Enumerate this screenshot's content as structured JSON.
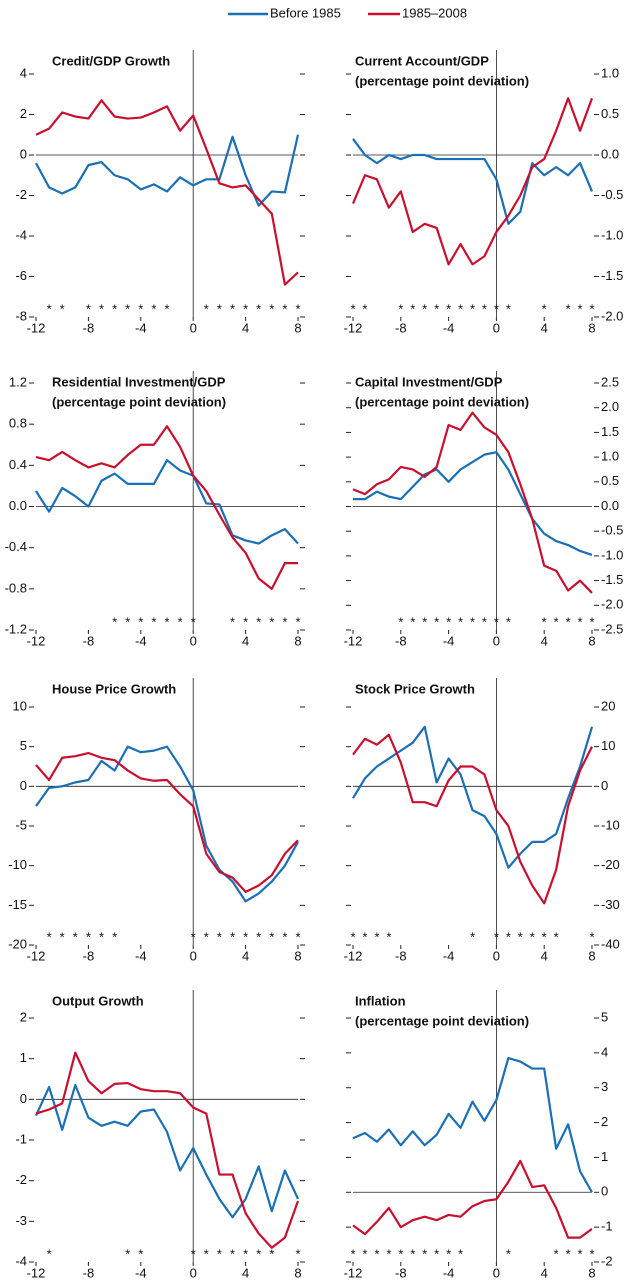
{
  "legend": [
    {
      "name": "Before 1985",
      "color": "#1a6fb5"
    },
    {
      "name": "1985–2008",
      "color": "#c8102e"
    }
  ],
  "chart_data": [
    {
      "type": "line",
      "title": "Credit/GDP Growth",
      "star_label": "*",
      "x": [
        -12,
        -11,
        -10,
        -9,
        -8,
        -7,
        -6,
        -5,
        -4,
        -3,
        -2,
        -1,
        0,
        1,
        2,
        3,
        4,
        5,
        6,
        7,
        8
      ],
      "xlim": [
        -12,
        8
      ],
      "xticks": [
        -12,
        -8,
        -4,
        0,
        4,
        8
      ],
      "ylim": [
        -8,
        4
      ],
      "yticks": [
        4,
        2,
        0,
        -2,
        -4,
        -6,
        -8
      ],
      "ytick_side": "left",
      "series": [
        {
          "color": "#1a6fb5",
          "values": [
            -0.4,
            -1.6,
            -1.9,
            -1.6,
            -0.5,
            -0.35,
            -1.0,
            -1.2,
            -1.7,
            -1.45,
            -1.8,
            -1.1,
            -1.5,
            -1.2,
            -1.2,
            0.9,
            -1.0,
            -2.5,
            -1.8,
            -1.85,
            1.0
          ]
        },
        {
          "color": "#c8102e",
          "values": [
            1.0,
            1.3,
            2.1,
            1.9,
            1.8,
            2.7,
            1.9,
            1.8,
            1.85,
            2.1,
            2.4,
            1.2,
            1.95,
            0.3,
            -1.4,
            -1.6,
            -1.5,
            -2.2,
            -2.9,
            -6.4,
            -5.8
          ]
        }
      ],
      "stars": [
        -11,
        -10,
        -8,
        -7,
        -6,
        -5,
        -4,
        -3,
        -2,
        1,
        2,
        3,
        4,
        5,
        6,
        7,
        8
      ]
    },
    {
      "type": "line",
      "title": "Current Account/GDP",
      "subtitle": "(percentage point deviation)",
      "star_label": "*",
      "x": [
        -12,
        -11,
        -10,
        -9,
        -8,
        -7,
        -6,
        -5,
        -4,
        -3,
        -2,
        -1,
        0,
        1,
        2,
        3,
        4,
        5,
        6,
        7,
        8
      ],
      "xlim": [
        -12,
        8
      ],
      "xticks": [
        -12,
        -8,
        -4,
        0,
        4,
        8
      ],
      "ylim": [
        -2,
        1
      ],
      "yticks": [
        {
          "value": 1,
          "label": "1.0"
        },
        0.5,
        {
          "value": 0,
          "label": "0.0"
        },
        -0.5,
        {
          "value": -1,
          "label": "-1.0"
        },
        -1.5,
        {
          "value": -2,
          "label": "-2.0"
        }
      ],
      "ytick_side": "right",
      "series": [
        {
          "color": "#1a6fb5",
          "values": [
            0.2,
            0.0,
            -0.1,
            0.0,
            -0.05,
            0.0,
            0.0,
            -0.05,
            -0.05,
            -0.05,
            -0.05,
            -0.05,
            -0.3,
            -0.85,
            -0.7,
            -0.1,
            -0.25,
            -0.15,
            -0.25,
            -0.1,
            -0.45
          ]
        },
        {
          "color": "#c8102e",
          "values": [
            -0.6,
            -0.25,
            -0.3,
            -0.65,
            -0.45,
            -0.95,
            -0.85,
            -0.9,
            -1.35,
            -1.1,
            -1.35,
            -1.25,
            -0.95,
            -0.75,
            -0.5,
            -0.15,
            -0.05,
            0.3,
            0.7,
            0.3,
            0.7
          ]
        }
      ],
      "stars": [
        -12,
        -11,
        -8,
        -7,
        -6,
        -5,
        -4,
        -3,
        -2,
        -1,
        0,
        1,
        4,
        6,
        7,
        8
      ]
    },
    {
      "type": "line",
      "title": "Residential Investment/GDP",
      "subtitle": "(percentage point deviation)",
      "star_label": "*",
      "x": [
        -12,
        -11,
        -10,
        -9,
        -8,
        -7,
        -6,
        -5,
        -4,
        -3,
        -2,
        -1,
        0,
        1,
        2,
        3,
        4,
        5,
        6,
        7,
        8
      ],
      "xlim": [
        -12,
        8
      ],
      "xticks": [
        -12,
        -8,
        -4,
        0,
        4,
        8
      ],
      "ylim": [
        -1.2,
        1.2
      ],
      "yticks": [
        1.2,
        0.8,
        0.4,
        {
          "value": 0,
          "label": "0.0"
        },
        -0.4,
        -0.8,
        -1.2
      ],
      "ytick_side": "left",
      "series": [
        {
          "color": "#1a6fb5",
          "values": [
            0.15,
            -0.05,
            0.18,
            0.1,
            0.0,
            0.25,
            0.32,
            0.22,
            0.22,
            0.22,
            0.45,
            0.35,
            0.3,
            0.03,
            0.02,
            -0.28,
            -0.33,
            -0.36,
            -0.28,
            -0.22,
            -0.36
          ]
        },
        {
          "color": "#c8102e",
          "values": [
            0.48,
            0.45,
            0.53,
            0.45,
            0.38,
            0.42,
            0.38,
            0.5,
            0.6,
            0.6,
            0.78,
            0.58,
            0.3,
            0.15,
            -0.08,
            -0.3,
            -0.45,
            -0.7,
            -0.8,
            -0.55,
            -0.55
          ]
        }
      ],
      "stars": [
        -6,
        -5,
        -4,
        -3,
        -2,
        -1,
        0,
        3,
        4,
        5,
        6,
        7,
        8
      ]
    },
    {
      "type": "line",
      "title": "Capital Investment/GDP",
      "subtitle": "(percentage point deviation)",
      "star_label": "*",
      "x": [
        -12,
        -11,
        -10,
        -9,
        -8,
        -7,
        -6,
        -5,
        -4,
        -3,
        -2,
        -1,
        0,
        1,
        2,
        3,
        4,
        5,
        6,
        7,
        8
      ],
      "xlim": [
        -12,
        8
      ],
      "xticks": [
        -12,
        -8,
        -4,
        0,
        4,
        8
      ],
      "ylim": [
        -2.5,
        2.5
      ],
      "yticks": [
        2.5,
        {
          "value": 2,
          "label": "2.0"
        },
        1.5,
        {
          "value": 1,
          "label": "1.0"
        },
        0.5,
        {
          "value": 0,
          "label": "0.0"
        },
        -0.5,
        {
          "value": -1,
          "label": "-1.0"
        },
        -1.5,
        {
          "value": -2,
          "label": "-2.0"
        },
        -2.5
      ],
      "ytick_side": "right",
      "series": [
        {
          "color": "#1a6fb5",
          "values": [
            0.15,
            0.15,
            0.3,
            0.2,
            0.15,
            0.4,
            0.65,
            0.75,
            0.5,
            0.75,
            0.9,
            1.05,
            1.1,
            0.75,
            0.25,
            -0.25,
            -0.55,
            -0.7,
            -0.78,
            -0.9,
            -0.98
          ]
        },
        {
          "color": "#c8102e",
          "values": [
            0.35,
            0.25,
            0.45,
            0.55,
            0.8,
            0.75,
            0.6,
            0.8,
            1.65,
            1.55,
            1.9,
            1.6,
            1.45,
            1.1,
            0.45,
            -0.25,
            -1.2,
            -1.3,
            -1.7,
            -1.5,
            -1.75
          ]
        }
      ],
      "stars": [
        -8,
        -7,
        -6,
        -5,
        -4,
        -3,
        -2,
        -1,
        0,
        1,
        4,
        5,
        6,
        7,
        8
      ]
    },
    {
      "type": "line",
      "title": "House Price Growth",
      "star_label": "*",
      "x": [
        -12,
        -11,
        -10,
        -9,
        -8,
        -7,
        -6,
        -5,
        -4,
        -3,
        -2,
        -1,
        0,
        1,
        2,
        3,
        4,
        5,
        6,
        7,
        8
      ],
      "xlim": [
        -12,
        8
      ],
      "xticks": [
        -12,
        -8,
        -4,
        0,
        4,
        8
      ],
      "ylim": [
        -20,
        10
      ],
      "yticks": [
        10,
        5,
        0,
        -5,
        -10,
        -15,
        -20
      ],
      "ytick_side": "left",
      "series": [
        {
          "color": "#1a6fb5",
          "values": [
            -2.5,
            -0.2,
            0.0,
            0.5,
            0.8,
            3.2,
            2.0,
            5.0,
            4.3,
            4.5,
            5.0,
            2.5,
            -0.5,
            -7.5,
            -10.5,
            -12,
            -14.5,
            -13.5,
            -12,
            -10,
            -7
          ]
        },
        {
          "color": "#c8102e",
          "values": [
            2.7,
            0.8,
            3.6,
            3.8,
            4.2,
            3.6,
            3.3,
            2.0,
            1.0,
            0.7,
            0.8,
            -1.0,
            -2.5,
            -8.5,
            -10.8,
            -11.5,
            -13.3,
            -12.5,
            -11.2,
            -8.5,
            -6.8
          ]
        }
      ],
      "stars": [
        -11,
        -10,
        -9,
        -8,
        -7,
        -6,
        0,
        1,
        2,
        3,
        4,
        5,
        6,
        7,
        8
      ]
    },
    {
      "type": "line",
      "title": "Stock Price Growth",
      "star_label": "*",
      "x": [
        -12,
        -11,
        -10,
        -9,
        -8,
        -7,
        -6,
        -5,
        -4,
        -3,
        -2,
        -1,
        0,
        1,
        2,
        3,
        4,
        5,
        6,
        7,
        8
      ],
      "xlim": [
        -12,
        8
      ],
      "xticks": [
        -12,
        -8,
        -4,
        0,
        4,
        8
      ],
      "ylim": [
        -40,
        20
      ],
      "yticks": [
        20,
        10,
        0,
        -10,
        -20,
        -30,
        -40
      ],
      "ytick_side": "right",
      "series": [
        {
          "color": "#1a6fb5",
          "values": [
            -3,
            2,
            5,
            7,
            9,
            11,
            15,
            1,
            7,
            3,
            -6,
            -7.5,
            -12,
            -20.5,
            -17,
            -14,
            -14,
            -12,
            -3,
            5,
            15
          ]
        },
        {
          "color": "#c8102e",
          "values": [
            8,
            12,
            10.5,
            13,
            6,
            -4,
            -4,
            -5,
            1.5,
            5,
            5,
            3,
            -6,
            -10,
            -19,
            -25,
            -29.5,
            -21,
            -5,
            4,
            10
          ]
        }
      ],
      "stars": [
        -12,
        -11,
        -10,
        -9,
        -2,
        0,
        1,
        2,
        3,
        4,
        5,
        8
      ]
    },
    {
      "type": "line",
      "title": "Output Growth",
      "star_label": "*",
      "x": [
        -12,
        -11,
        -10,
        -9,
        -8,
        -7,
        -6,
        -5,
        -4,
        -3,
        -2,
        -1,
        0,
        1,
        2,
        3,
        4,
        5,
        6,
        7,
        8
      ],
      "xlim": [
        -12,
        8
      ],
      "xticks": [
        -12,
        -8,
        -4,
        0,
        4,
        8
      ],
      "ylim": [
        -4,
        2
      ],
      "yticks": [
        2,
        1,
        0,
        -1,
        -2,
        -3,
        -4
      ],
      "ytick_side": "left",
      "series": [
        {
          "color": "#1a6fb5",
          "values": [
            -0.4,
            0.3,
            -0.75,
            0.35,
            -0.45,
            -0.65,
            -0.55,
            -0.65,
            -0.3,
            -0.25,
            -0.8,
            -1.75,
            -1.2,
            -1.85,
            -2.45,
            -2.9,
            -2.45,
            -1.65,
            -2.75,
            -1.75,
            -2.45
          ]
        },
        {
          "color": "#c8102e",
          "values": [
            -0.35,
            -0.25,
            -0.1,
            1.15,
            0.45,
            0.15,
            0.38,
            0.4,
            0.25,
            0.2,
            0.2,
            0.15,
            -0.2,
            -0.35,
            -1.85,
            -1.85,
            -2.8,
            -3.3,
            -3.65,
            -3.4,
            -2.5
          ]
        }
      ],
      "stars": [
        -11,
        -5,
        -4,
        0,
        1,
        2,
        3,
        4,
        5,
        6,
        8
      ]
    },
    {
      "type": "line",
      "title": "Inflation",
      "subtitle": "(percentage point deviation)",
      "star_label": "*",
      "x": [
        -12,
        -11,
        -10,
        -9,
        -8,
        -7,
        -6,
        -5,
        -4,
        -3,
        -2,
        -1,
        0,
        1,
        2,
        3,
        4,
        5,
        6,
        7,
        8
      ],
      "xlim": [
        -12,
        8
      ],
      "xticks": [
        -12,
        -8,
        -4,
        0,
        4,
        8
      ],
      "ylim": [
        -2,
        5
      ],
      "yticks": [
        5,
        4,
        3,
        2,
        1,
        0,
        -1,
        -2
      ],
      "ytick_side": "right",
      "series": [
        {
          "color": "#1a6fb5",
          "values": [
            1.55,
            1.7,
            1.45,
            1.8,
            1.35,
            1.75,
            1.35,
            1.65,
            2.25,
            1.85,
            2.6,
            2.05,
            2.65,
            3.85,
            3.75,
            3.55,
            3.55,
            1.25,
            1.95,
            0.6,
            0.0
          ]
        },
        {
          "color": "#c8102e",
          "values": [
            -0.95,
            -1.2,
            -0.85,
            -0.45,
            -1.0,
            -0.8,
            -0.7,
            -0.8,
            -0.65,
            -0.7,
            -0.4,
            -0.25,
            -0.2,
            0.3,
            0.9,
            0.15,
            0.2,
            -0.45,
            -1.3,
            -1.3,
            -1.05
          ]
        }
      ],
      "stars": [
        -12,
        -11,
        -10,
        -9,
        -8,
        -7,
        -6,
        -5,
        -4,
        -3,
        1,
        5,
        6,
        7,
        8
      ]
    }
  ]
}
